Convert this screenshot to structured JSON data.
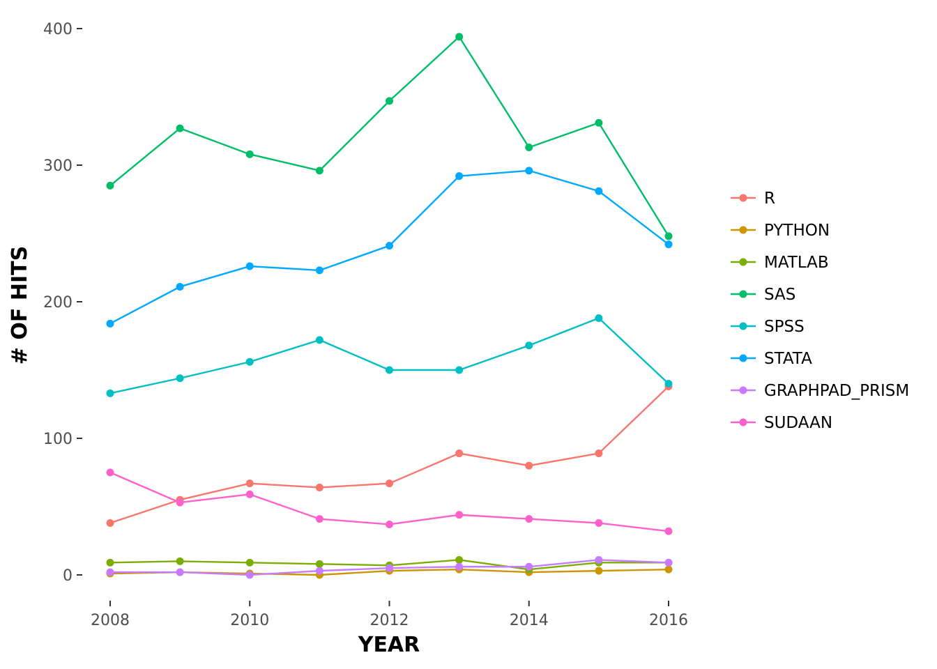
{
  "chart_data": {
    "type": "line",
    "title": "",
    "xlabel": "YEAR",
    "ylabel": "# OF HITS",
    "x": [
      2008,
      2009,
      2010,
      2011,
      2012,
      2013,
      2014,
      2015,
      2016
    ],
    "xticks": [
      2008,
      2010,
      2012,
      2014,
      2016
    ],
    "xlim": [
      2008,
      2016
    ],
    "yticks": [
      0,
      100,
      200,
      300,
      400
    ],
    "ylim": [
      0,
      400
    ],
    "grid": false,
    "legend_position": "right",
    "series": [
      {
        "name": "R",
        "color": "#F8766D",
        "values": [
          38,
          55,
          67,
          64,
          67,
          89,
          80,
          89,
          138
        ]
      },
      {
        "name": "PYTHON",
        "color": "#CD9600",
        "values": [
          1,
          2,
          1,
          0,
          3,
          4,
          2,
          3,
          4
        ]
      },
      {
        "name": "MATLAB",
        "color": "#7CAE00",
        "values": [
          9,
          10,
          9,
          8,
          7,
          11,
          4,
          9,
          9
        ]
      },
      {
        "name": "SAS",
        "color": "#00BE67",
        "values": [
          285,
          327,
          308,
          296,
          347,
          394,
          313,
          331,
          248
        ]
      },
      {
        "name": "SPSS",
        "color": "#00BFC4",
        "values": [
          133,
          144,
          156,
          172,
          150,
          150,
          168,
          188,
          140
        ]
      },
      {
        "name": "STATA",
        "color": "#00A9FF",
        "values": [
          184,
          211,
          226,
          223,
          241,
          292,
          296,
          281,
          242
        ]
      },
      {
        "name": "GRAPHPAD_PRISM",
        "color": "#C77CFF",
        "values": [
          2,
          2,
          0,
          3,
          5,
          6,
          6,
          11,
          9
        ]
      },
      {
        "name": "SUDAAN",
        "color": "#FF61CC",
        "values": [
          75,
          53,
          59,
          41,
          37,
          44,
          41,
          38,
          32
        ]
      }
    ]
  }
}
